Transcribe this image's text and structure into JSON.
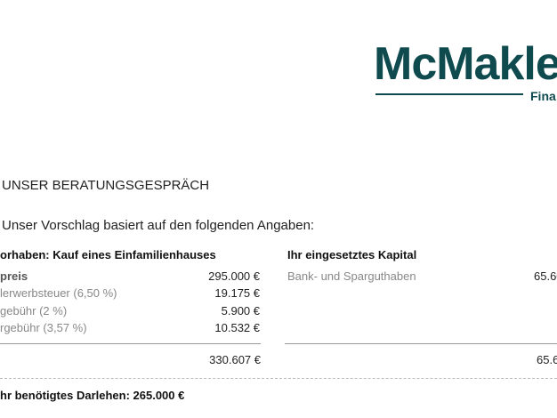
{
  "logo": {
    "brand": "McMakle",
    "sub": "Fina",
    "color": "#0f4a4f"
  },
  "heading": "UNSER BERATUNGSGESPRÄCH",
  "intro": "Unser Vorschlag basiert auf den folgenden Angaben:",
  "left": {
    "title": "orhaben: Kauf eines Einfamilienhauses",
    "rows": [
      {
        "label": "preis",
        "value": "295.000 €"
      },
      {
        "label": "lerwerbsteuer (6,50 %)",
        "value": "19.175 €"
      },
      {
        "label": "gebühr (2 %)",
        "value": "5.900 €"
      },
      {
        "label": "rgebühr (3,57 %)",
        "value": "10.532 €"
      }
    ],
    "total": "330.607 €"
  },
  "right": {
    "title": "Ihr eingesetztes Kapital",
    "rows": [
      {
        "label": "Bank- und Sparguthaben",
        "value": "65.60"
      }
    ],
    "total": "65.6"
  },
  "loan": "hr benötigtes Darlehen: 265.000 €"
}
